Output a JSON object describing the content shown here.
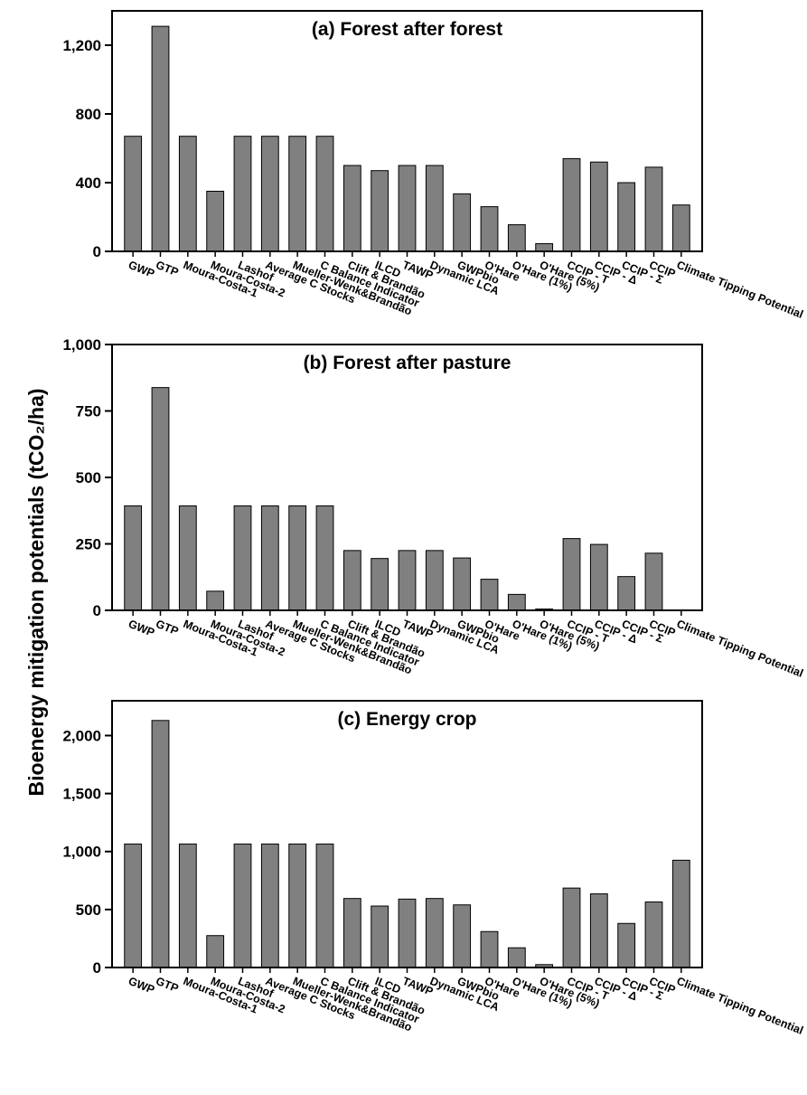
{
  "figure": {
    "ylabel": "Bioenergy mitigation potentials (tCO₂/ha)",
    "bar_color": "#808080",
    "bar_stroke": "#000000"
  },
  "chart_data": [
    {
      "type": "bar",
      "title": "(a) Forest after forest",
      "categories": [
        "GWP",
        "GTP",
        "Moura-Costa-1",
        "Moura-Costa-2",
        "Lashof",
        "Average C Stocks",
        "Mueller-Wenk&Brandão",
        "C Balance Indicator",
        "Clift & Brandão",
        "ILCD",
        "TAWP",
        "Dynamic LCA",
        "GWPbio",
        "O'Hare",
        "O'Hare (1%)",
        "O'Hare (5%)",
        "CCIP - T",
        "CCIP - Δ",
        "CCIP - Σ",
        "CCIP",
        "Climate Tipping Potential"
      ],
      "values": [
        670,
        1310,
        670,
        350,
        670,
        670,
        670,
        670,
        500,
        470,
        500,
        500,
        335,
        260,
        155,
        45,
        540,
        520,
        400,
        490,
        270
      ],
      "ylim": [
        0,
        1400
      ],
      "yticks": [
        0,
        400,
        800,
        1200
      ],
      "ytick_labels": [
        "0",
        "400",
        "800",
        "1,200"
      ],
      "grid": false
    },
    {
      "type": "bar",
      "title": "(b) Forest after pasture",
      "categories": [
        "GWP",
        "GTP",
        "Moura-Costa-1",
        "Moura-Costa-2",
        "Lashof",
        "Average C Stocks",
        "Mueller-Wenk&Brandão",
        "C Balance Indicator",
        "Clift & Brandão",
        "ILCD",
        "TAWP",
        "Dynamic LCA",
        "GWPbio",
        "O'Hare",
        "O'Hare (1%)",
        "O'Hare (5%)",
        "CCIP - T",
        "CCIP - Δ",
        "CCIP - Σ",
        "CCIP",
        "Climate Tipping Potential"
      ],
      "values": [
        393,
        838,
        393,
        72,
        393,
        393,
        393,
        393,
        225,
        195,
        225,
        225,
        197,
        117,
        60,
        5,
        270,
        248,
        127,
        215,
        0
      ],
      "ylim": [
        0,
        1000
      ],
      "yticks": [
        0,
        250,
        500,
        750,
        1000
      ],
      "ytick_labels": [
        "0",
        "250",
        "500",
        "750",
        "1,000"
      ],
      "grid": false
    },
    {
      "type": "bar",
      "title": "(c) Energy crop",
      "categories": [
        "GWP",
        "GTP",
        "Moura-Costa-1",
        "Moura-Costa-2",
        "Lashof",
        "Average C Stocks",
        "Mueller-Wenk&Brandão",
        "C Balance Indicator",
        "Clift & Brandão",
        "ILCD",
        "TAWP",
        "Dynamic LCA",
        "GWPbio",
        "O'Hare",
        "O'Hare (1%)",
        "O'Hare (5%)",
        "CCIP - T",
        "CCIP - Δ",
        "CCIP - Σ",
        "CCIP",
        "Climate Tipping Potential"
      ],
      "values": [
        1065,
        2130,
        1065,
        275,
        1065,
        1065,
        1065,
        1065,
        595,
        530,
        590,
        595,
        540,
        310,
        170,
        25,
        685,
        635,
        380,
        565,
        925
      ],
      "ylim": [
        0,
        2300
      ],
      "yticks": [
        0,
        500,
        1000,
        1500,
        2000
      ],
      "ytick_labels": [
        "0",
        "500",
        "1,000",
        "1,500",
        "2,000"
      ],
      "grid": false
    }
  ]
}
